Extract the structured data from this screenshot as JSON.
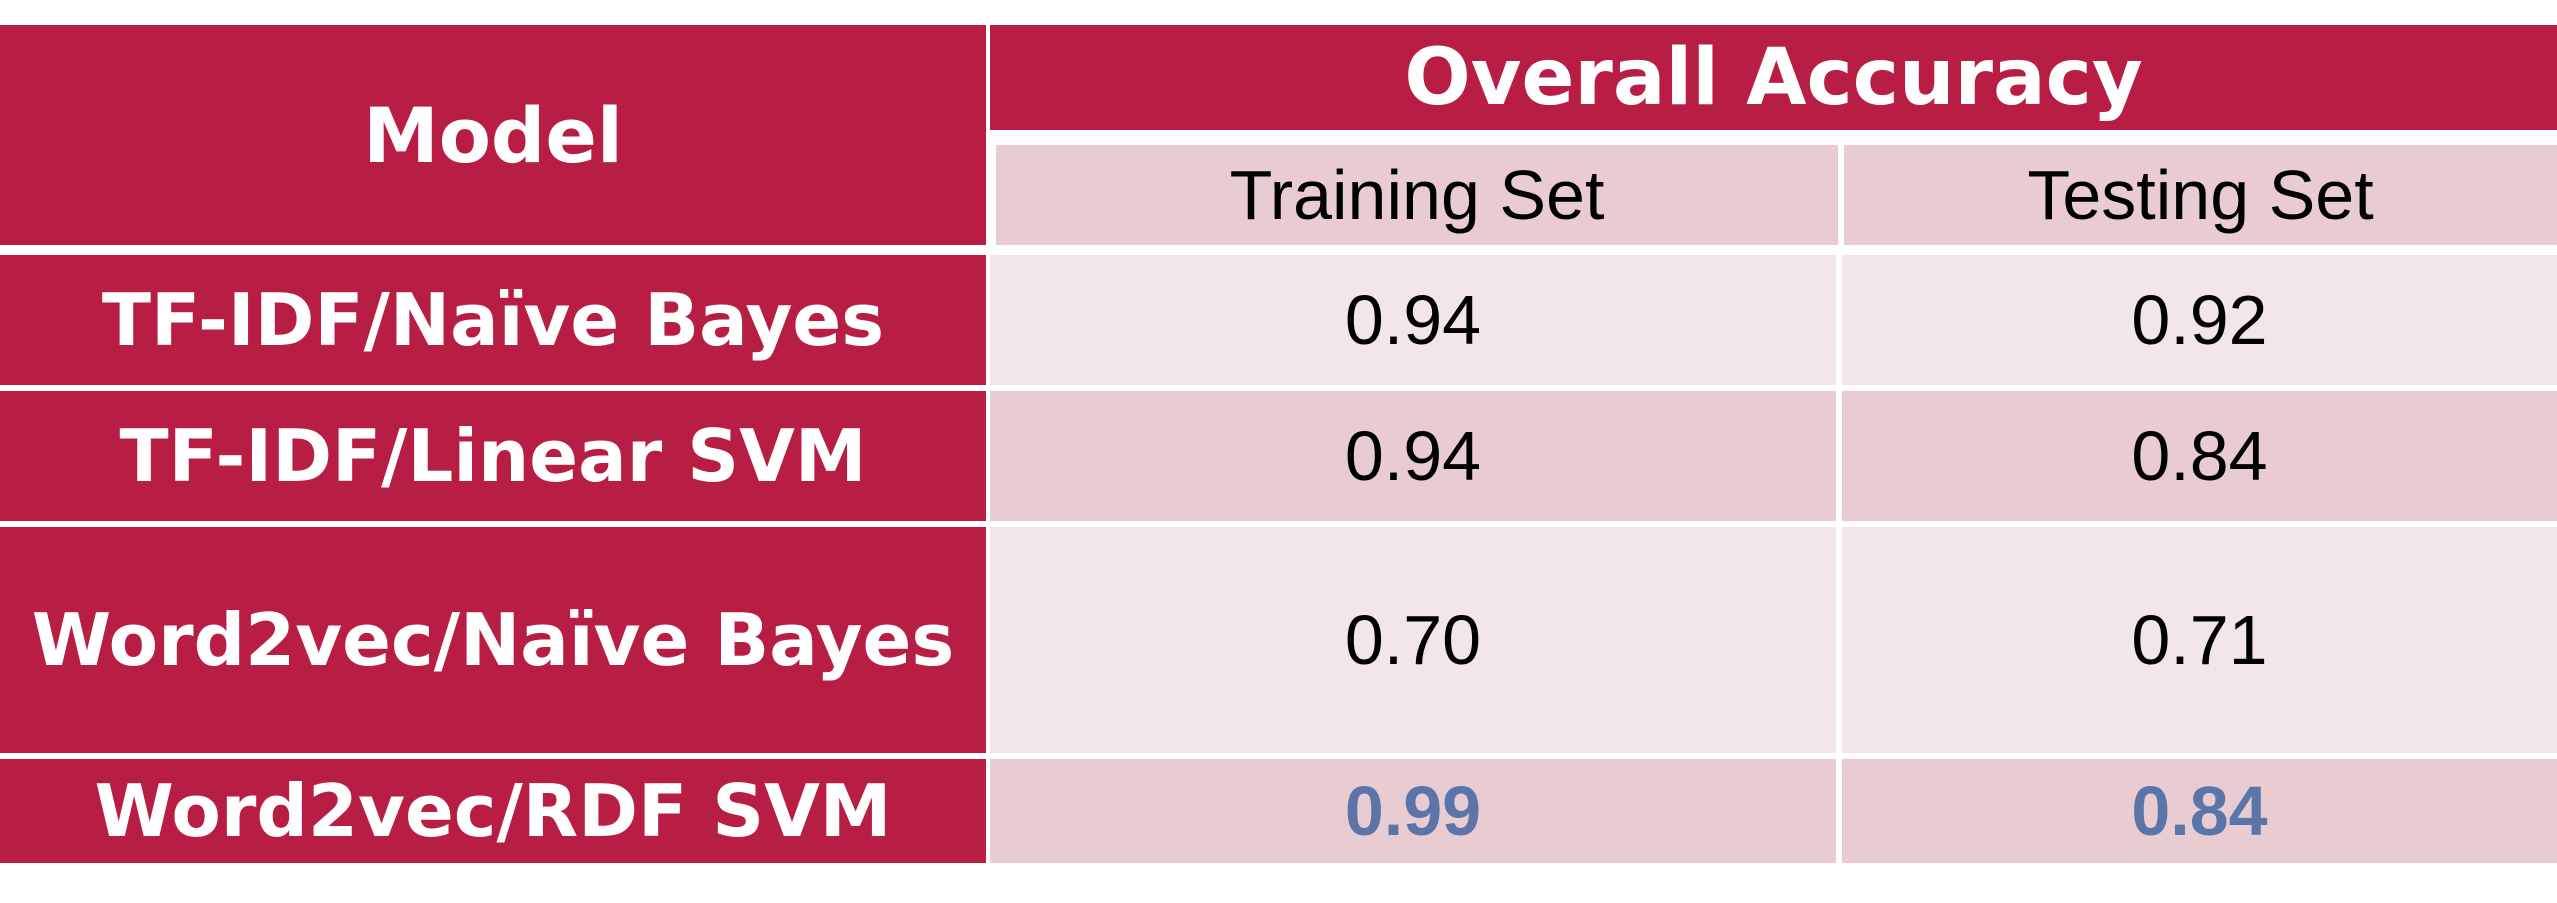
{
  "chart_data": {
    "type": "table",
    "columns": {
      "model": "Model",
      "group": "Overall Accuracy",
      "training": "Training Set",
      "testing": "Testing Set"
    },
    "rows": [
      {
        "model": "TF-IDF/Naïve Bayes",
        "training": "0.94",
        "testing": "0.92",
        "highlight": false
      },
      {
        "model": "TF-IDF/Linear SVM",
        "training": "0.94",
        "testing": "0.84",
        "highlight": false
      },
      {
        "model": "Word2vec/Naïve Bayes",
        "training": "0.70",
        "testing": "0.71",
        "highlight": false
      },
      {
        "model": "Word2vec/RDF SVM",
        "training": "0.99",
        "testing": "0.84",
        "highlight": true
      }
    ]
  },
  "colors": {
    "header_bg": "#b81e43",
    "header_text": "#ffffff",
    "row_light": "#f3e6e8",
    "row_dark": "#e8ccd1",
    "value_text": "#000000",
    "highlight_text": "#5b75a8"
  }
}
